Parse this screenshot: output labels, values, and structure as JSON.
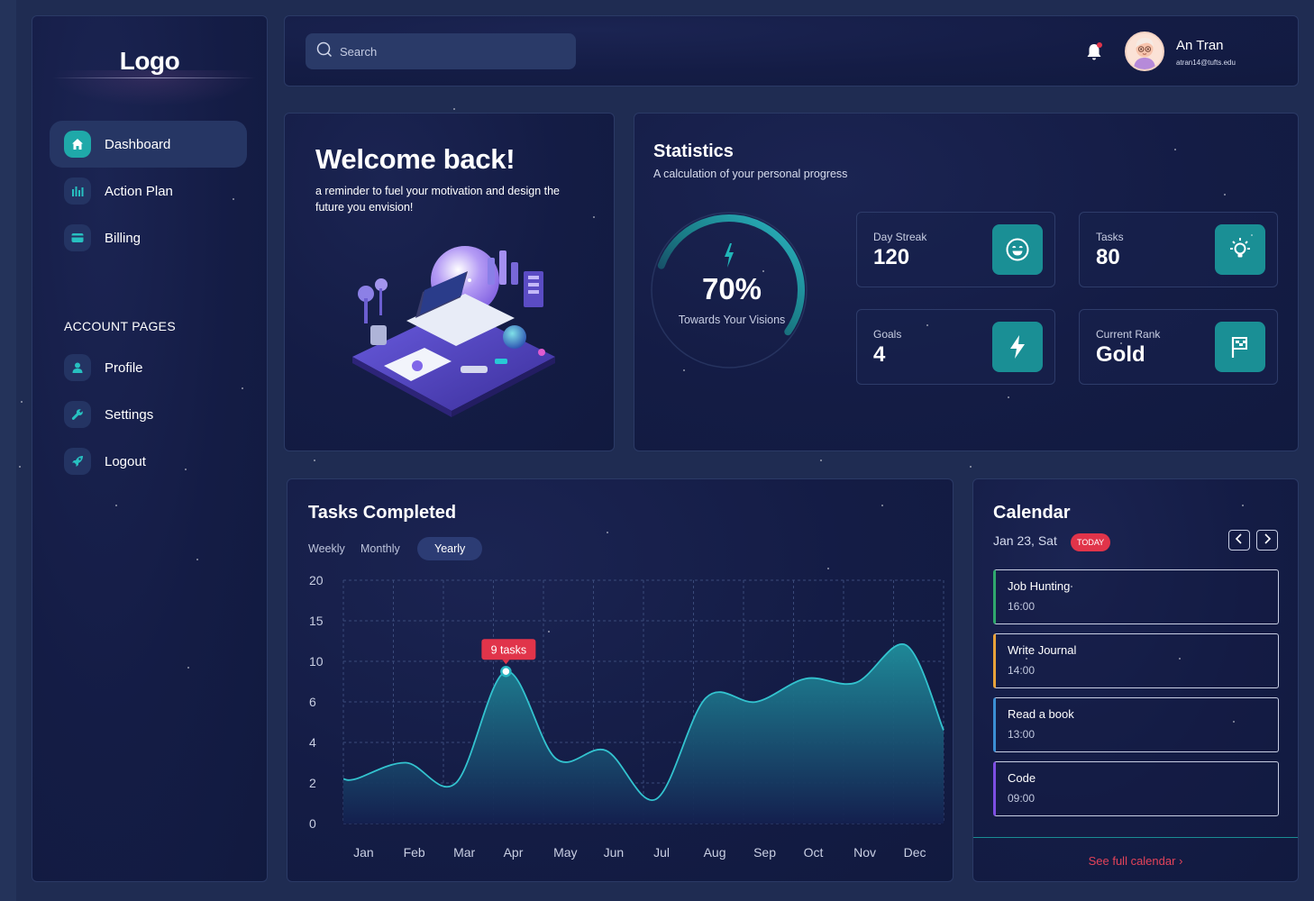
{
  "brand": {
    "logo": "Logo"
  },
  "sidebar": {
    "items": [
      {
        "label": "Dashboard",
        "icon": "home-icon",
        "active": true
      },
      {
        "label": "Action Plan",
        "icon": "bar-chart-icon"
      },
      {
        "label": "Billing",
        "icon": "credit-card-icon"
      }
    ],
    "section_title": "ACCOUNT PAGES",
    "account_items": [
      {
        "label": "Profile",
        "icon": "user-icon"
      },
      {
        "label": "Settings",
        "icon": "wrench-icon"
      },
      {
        "label": "Logout",
        "icon": "rocket-icon"
      }
    ]
  },
  "header": {
    "search_placeholder": "Search",
    "user": {
      "name": "An Tran",
      "email": "atran14@tufts.edu"
    },
    "notification_dot_color": "#e1344a"
  },
  "welcome": {
    "title": "Welcome back!",
    "message": "a reminder to fuel your motivation and design the future you envision!"
  },
  "statistics": {
    "title": "Statistics",
    "subtitle": "A calculation of your personal progress",
    "progress": {
      "value": "70%",
      "fraction": 0.7,
      "label": "Towards Your Visions"
    },
    "cards": [
      {
        "label": "Day Streak",
        "value": "120",
        "icon": "smiley-icon"
      },
      {
        "label": "Tasks",
        "value": "80",
        "icon": "lightbulb-icon"
      },
      {
        "label": "Goals",
        "value": "4",
        "icon": "lightning-icon"
      },
      {
        "label": "Current Rank",
        "value": "Gold",
        "icon": "flag-icon"
      }
    ]
  },
  "tasks_completed": {
    "title": "Tasks Completed",
    "tabs": [
      "Weekly",
      "Monthly",
      "Yearly"
    ],
    "active_tab": "Yearly",
    "tooltip": "9 tasks"
  },
  "chart_data": {
    "type": "area",
    "title": "Tasks Completed",
    "x": [
      "Jan",
      "Feb",
      "Mar",
      "Apr",
      "May",
      "Jun",
      "Jul",
      "Aug",
      "Sep",
      "Oct",
      "Nov",
      "Dec"
    ],
    "y_ticks": [
      "0",
      "2",
      "4",
      "6",
      "10",
      "15",
      "20"
    ],
    "curve_points": [
      [
        "Jan",
        2.2
      ],
      [
        "Feb",
        3.0
      ],
      [
        "Mar",
        2.0
      ],
      [
        "Apr",
        9.0
      ],
      [
        "May",
        3.2
      ],
      [
        "Jun",
        3.6
      ],
      [
        "Jul",
        1.2
      ],
      [
        "Aug",
        6.4
      ],
      [
        "Sep",
        6.0
      ],
      [
        "Oct",
        8.3
      ],
      [
        "Nov",
        7.9
      ],
      [
        "Dec",
        12.0
      ]
    ],
    "highlight": {
      "month": "Apr",
      "value": 9,
      "label": "9 tasks"
    },
    "grid": true,
    "colors": {
      "line": "#33c3cf",
      "fill_top": "#1f8e9c",
      "fill_bottom": "#14204f",
      "tooltip": "#e1344a"
    }
  },
  "calendar": {
    "title": "Calendar",
    "date": "Jan 23, Sat",
    "badge": "TODAY",
    "events": [
      {
        "title": "Job Hunting",
        "time": "16:00",
        "color": "#2fa86d"
      },
      {
        "title": "Write Journal",
        "time": "14:00",
        "color": "#e8a23a"
      },
      {
        "title": "Read a book",
        "time": "13:00",
        "color": "#3b8fd4"
      },
      {
        "title": "Code",
        "time": "09:00",
        "color": "#7d4ee3"
      }
    ],
    "footer_link": "See full calendar"
  }
}
